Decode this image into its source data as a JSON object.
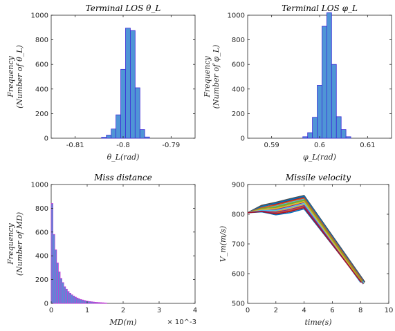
{
  "chart_data": [
    {
      "type": "bar",
      "title": "Terminal LOS θ_L",
      "xlabel": "θ_L(rad)",
      "ylabel_line1": "Frequency",
      "ylabel_line2": "(Number of θ_L)",
      "xlim": [
        -0.815,
        -0.785
      ],
      "ylim": [
        0,
        1000
      ],
      "xticks": [
        -0.81,
        -0.8,
        -0.79
      ],
      "xtick_labels": [
        "-0.81",
        "-0.8",
        "-0.79"
      ],
      "yticks": [
        0,
        200,
        400,
        600,
        800,
        1000
      ],
      "ytick_labels": [
        "0",
        "200",
        "400",
        "600",
        "800",
        "1000"
      ],
      "bin_width": 0.001,
      "bins_left": [
        -0.8045,
        -0.8035,
        -0.8025,
        -0.8015,
        -0.8005,
        -0.7995,
        -0.7985,
        -0.7975,
        -0.7965,
        -0.7955
      ],
      "values": [
        8,
        25,
        75,
        190,
        560,
        895,
        875,
        410,
        70,
        10
      ],
      "face_color": "#4f95d6",
      "edge_color": "#3d2bd6"
    },
    {
      "type": "bar",
      "title": "Terminal LOS φ_L",
      "xlabel": "φ_L(rad)",
      "ylabel_line1": "Frequency",
      "ylabel_line2": "(Number of φ_L)",
      "xlim": [
        0.585,
        0.615
      ],
      "ylim": [
        0,
        1000
      ],
      "xticks": [
        0.59,
        0.6,
        0.61
      ],
      "xtick_labels": [
        "0.59",
        "0.6",
        "0.61"
      ],
      "yticks": [
        0,
        200,
        400,
        600,
        800,
        1000
      ],
      "ytick_labels": [
        "0",
        "200",
        "400",
        "600",
        "800",
        "1000"
      ],
      "bin_width": 0.001,
      "bins_left": [
        0.5965,
        0.5975,
        0.5985,
        0.5995,
        0.6005,
        0.6015,
        0.6025,
        0.6035,
        0.6045,
        0.6055
      ],
      "values": [
        12,
        45,
        170,
        430,
        910,
        1020,
        600,
        175,
        70,
        12
      ],
      "face_color": "#4f95d6",
      "edge_color": "#3d2bd6"
    },
    {
      "type": "bar",
      "title": "Miss distance",
      "xlabel": "MD(m)",
      "ylabel_line1": "Frequency",
      "ylabel_line2": "(Number of MD)",
      "xlim": [
        0,
        4
      ],
      "ylim": [
        0,
        1000
      ],
      "x_exponent_label": "× 10^-3",
      "xticks": [
        0,
        1,
        2,
        3,
        4
      ],
      "xtick_labels": [
        "0",
        "1",
        "2",
        "3",
        "4"
      ],
      "yticks": [
        0,
        200,
        400,
        600,
        800,
        1000
      ],
      "ytick_labels": [
        "0",
        "200",
        "400",
        "600",
        "800",
        "1000"
      ],
      "bin_width": 0.05,
      "bins_left": [
        0,
        0.05,
        0.1,
        0.15,
        0.2,
        0.25,
        0.3,
        0.35,
        0.4,
        0.45,
        0.5,
        0.55,
        0.6,
        0.65,
        0.7,
        0.75,
        0.8,
        0.85,
        0.9,
        0.95,
        1.0,
        1.05,
        1.1,
        1.15,
        1.2,
        1.25,
        1.3,
        1.35,
        1.4,
        1.45,
        1.5
      ],
      "values": [
        840,
        580,
        450,
        340,
        265,
        210,
        175,
        140,
        120,
        100,
        85,
        72,
        62,
        52,
        45,
        38,
        32,
        28,
        24,
        20,
        17,
        15,
        13,
        11,
        9,
        8,
        7,
        6,
        5,
        4,
        3
      ],
      "face_color": "#4f95d6",
      "edge_color": "#c23ad6"
    },
    {
      "type": "line",
      "title": "Missile velocity",
      "xlabel": "time(s)",
      "ylabel": "V_m(m/s)",
      "xlim": [
        0,
        10
      ],
      "ylim": [
        500,
        900
      ],
      "xticks": [
        0,
        2,
        4,
        6,
        8,
        10
      ],
      "xtick_labels": [
        "0",
        "2",
        "4",
        "6",
        "8",
        "10"
      ],
      "yticks": [
        500,
        600,
        700,
        800,
        900
      ],
      "ytick_labels": [
        "500",
        "600",
        "700",
        "800",
        "900"
      ],
      "series_peak_times_s": [
        3.9,
        3.95,
        4.0,
        4.05
      ],
      "series_end_times_s": [
        8.0,
        8.1,
        8.2,
        8.3
      ],
      "series": [
        {
          "color": "#0072bd",
          "points": [
            [
              0,
              805
            ],
            [
              1,
              808
            ],
            [
              2,
              798
            ],
            [
              3,
              805
            ],
            [
              4,
              818
            ],
            [
              8.1,
              570
            ]
          ]
        },
        {
          "color": "#d95319",
          "points": [
            [
              0,
              805
            ],
            [
              1,
              812
            ],
            [
              2,
              804
            ],
            [
              3,
              812
            ],
            [
              4,
              826
            ],
            [
              8.15,
              568
            ]
          ]
        },
        {
          "color": "#edb120",
          "points": [
            [
              0,
              805
            ],
            [
              1,
              815
            ],
            [
              2,
              810
            ],
            [
              3,
              820
            ],
            [
              4,
              833
            ],
            [
              8.2,
              566
            ]
          ]
        },
        {
          "color": "#7e2f8e",
          "points": [
            [
              0,
              805
            ],
            [
              1,
              818
            ],
            [
              2,
              816
            ],
            [
              3,
              827
            ],
            [
              4,
              840
            ],
            [
              8.2,
              565
            ]
          ]
        },
        {
          "color": "#77ac30",
          "points": [
            [
              0,
              805
            ],
            [
              1,
              821
            ],
            [
              2,
              822
            ],
            [
              3,
              834
            ],
            [
              4,
              846
            ],
            [
              8.25,
              567
            ]
          ]
        },
        {
          "color": "#4dbeee",
          "points": [
            [
              0,
              805
            ],
            [
              1,
              824
            ],
            [
              2,
              828
            ],
            [
              3,
              840
            ],
            [
              4,
              851
            ],
            [
              8.25,
              569
            ]
          ]
        },
        {
          "color": "#a2142f",
          "points": [
            [
              0,
              805
            ],
            [
              1,
              827
            ],
            [
              2,
              834
            ],
            [
              3,
              846
            ],
            [
              4,
              857
            ],
            [
              8.3,
              571
            ]
          ]
        },
        {
          "color": "#4d4d4d",
          "points": [
            [
              0,
              805
            ],
            [
              1,
              830
            ],
            [
              2,
              840
            ],
            [
              3,
              852
            ],
            [
              4,
              863
            ],
            [
              8.3,
              572
            ]
          ]
        },
        {
          "color": "#0072bd",
          "points": [
            [
              0,
              805
            ],
            [
              1,
              826
            ],
            [
              2,
              837
            ],
            [
              3,
              849
            ],
            [
              4,
              860
            ],
            [
              8.2,
              575
            ]
          ]
        },
        {
          "color": "#d95319",
          "points": [
            [
              0,
              805
            ],
            [
              1,
              822
            ],
            [
              2,
              831
            ],
            [
              3,
              843
            ],
            [
              4,
              854
            ],
            [
              8.15,
              576
            ]
          ]
        },
        {
          "color": "#77ac30",
          "points": [
            [
              0,
              805
            ],
            [
              1,
              819
            ],
            [
              2,
              825
            ],
            [
              3,
              837
            ],
            [
              4,
              848
            ],
            [
              8.1,
              574
            ]
          ]
        },
        {
          "color": "#edb120",
          "points": [
            [
              0,
              805
            ],
            [
              1,
              816
            ],
            [
              2,
              819
            ],
            [
              3,
              830
            ],
            [
              4,
              842
            ],
            [
              8.05,
              572
            ]
          ]
        },
        {
          "color": "#4dbeee",
          "points": [
            [
              0,
              805
            ],
            [
              1,
              813
            ],
            [
              2,
              813
            ],
            [
              3,
              823
            ],
            [
              4,
              836
            ],
            [
              8.0,
              570
            ]
          ]
        },
        {
          "color": "#7e2f8e",
          "points": [
            [
              0,
              805
            ],
            [
              1,
              810
            ],
            [
              2,
              807
            ],
            [
              3,
              816
            ],
            [
              4,
              829
            ],
            [
              8.0,
              573
            ]
          ]
        },
        {
          "color": "#a2142f",
          "points": [
            [
              0,
              805
            ],
            [
              1,
              809
            ],
            [
              2,
              801
            ],
            [
              3,
              809
            ],
            [
              4,
              822
            ],
            [
              8.05,
              571
            ]
          ]
        }
      ]
    }
  ]
}
